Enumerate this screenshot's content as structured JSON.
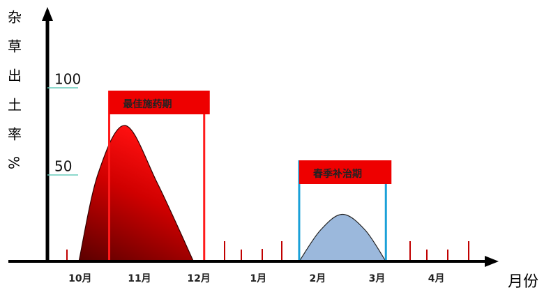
{
  "chart_data": {
    "type": "area",
    "y_label": "杂草出土率%",
    "x_label": "月份",
    "categories": [
      "10月",
      "11月",
      "12月",
      "1月",
      "2月",
      "3月",
      "4月"
    ],
    "series": [
      {
        "name": "最佳施药期",
        "color": "#e00000",
        "x": [
          -0.02,
          0.3,
          0.76,
          1.3,
          1.91
        ],
        "values": [
          0,
          50,
          78,
          45,
          0
        ]
      },
      {
        "name": "春季补治期",
        "color": "#9bb8dc",
        "x": [
          3.69,
          4.05,
          4.42,
          4.8,
          5.15
        ],
        "values": [
          0,
          18,
          27,
          18,
          0
        ]
      }
    ],
    "xlim": [
      -0.55,
      7.05
    ],
    "ylim": [
      0,
      140
    ],
    "yticks": [
      100,
      50
    ]
  }
}
